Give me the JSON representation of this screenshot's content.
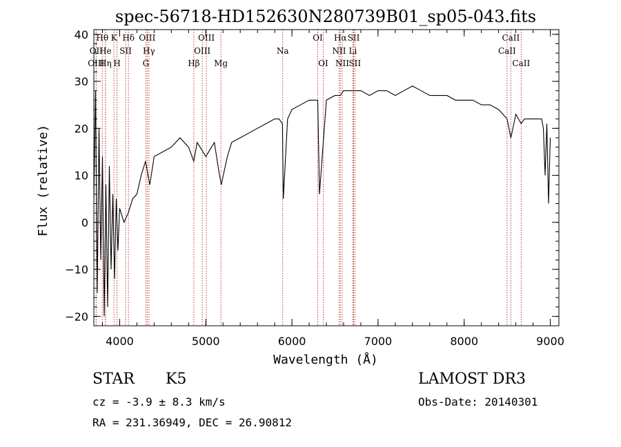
{
  "chart_data": {
    "type": "line",
    "title": "spec-56718-HD152630N280739B01_sp05-043.fits",
    "xlabel": "Wavelength (Å)",
    "ylabel": "Flux (relative)",
    "xlim": [
      3700,
      9100
    ],
    "ylim": [
      -22,
      41
    ],
    "x_ticks": [
      4000,
      5000,
      6000,
      7000,
      8000,
      9000
    ],
    "y_ticks": [
      -20,
      -10,
      0,
      10,
      20,
      30,
      40
    ],
    "grid": false,
    "series": [
      {
        "name": "spectrum",
        "wavelength": [
          3700,
          3720,
          3740,
          3760,
          3780,
          3800,
          3820,
          3840,
          3860,
          3880,
          3900,
          3920,
          3940,
          3960,
          3980,
          4000,
          4050,
          4100,
          4150,
          4200,
          4250,
          4300,
          4350,
          4400,
          4500,
          4600,
          4700,
          4800,
          4860,
          4900,
          5000,
          5100,
          5150,
          5180,
          5250,
          5300,
          5400,
          5500,
          5600,
          5700,
          5800,
          5850,
          5890,
          5900,
          5950,
          6000,
          6100,
          6200,
          6300,
          6320,
          6400,
          6500,
          6563,
          6600,
          6700,
          6800,
          6900,
          7000,
          7100,
          7200,
          7300,
          7400,
          7500,
          7600,
          7700,
          7800,
          7900,
          8000,
          8100,
          8200,
          8300,
          8400,
          8450,
          8498,
          8542,
          8600,
          8662,
          8700,
          8800,
          8850,
          8900,
          8920,
          8940,
          8960,
          8980,
          9000
        ],
        "flux": [
          5,
          28,
          -15,
          20,
          -8,
          14,
          -20,
          8,
          -18,
          12,
          -10,
          6,
          -12,
          5,
          -6,
          3,
          0,
          2,
          5,
          6,
          10,
          13,
          8,
          14,
          15,
          16,
          18,
          16,
          13,
          17,
          14,
          17,
          11,
          8,
          14,
          17,
          18,
          19,
          20,
          21,
          22,
          22,
          21,
          5,
          22,
          24,
          25,
          26,
          26,
          6,
          26,
          27,
          27,
          28,
          28,
          28,
          27,
          28,
          28,
          27,
          28,
          29,
          28,
          27,
          27,
          27,
          26,
          26,
          26,
          25,
          25,
          24,
          23,
          22,
          18,
          23,
          21,
          22,
          22,
          22,
          22,
          20,
          10,
          21,
          4,
          18
        ]
      }
    ],
    "spectral_lines": [
      {
        "label": "Hθ",
        "wl": 3798,
        "row": 1
      },
      {
        "label": "OII",
        "wl": 3727,
        "row": 2
      },
      {
        "label": "OIII",
        "wl": 3726,
        "row": 3
      },
      {
        "label": "He",
        "wl": 3835,
        "row": 2
      },
      {
        "label": "Hη",
        "wl": 3835,
        "row": 3
      },
      {
        "label": "K",
        "wl": 3934,
        "row": 1
      },
      {
        "label": "H",
        "wl": 3969,
        "row": 3
      },
      {
        "label": "SII",
        "wl": 4069,
        "row": 2
      },
      {
        "label": "Hδ",
        "wl": 4102,
        "row": 1
      },
      {
        "label": "OIII",
        "wl": 4320,
        "row": 1
      },
      {
        "label": "Hγ",
        "wl": 4340,
        "row": 2
      },
      {
        "label": "G",
        "wl": 4304,
        "row": 3
      },
      {
        "label": "Hβ",
        "wl": 4861,
        "row": 3
      },
      {
        "label": "OIII",
        "wl": 4959,
        "row": 2
      },
      {
        "label": "OIII",
        "wl": 5007,
        "row": 1
      },
      {
        "label": "Mg",
        "wl": 5175,
        "row": 3
      },
      {
        "label": "Na",
        "wl": 5893,
        "row": 2
      },
      {
        "label": "OI",
        "wl": 6300,
        "row": 1
      },
      {
        "label": "OI",
        "wl": 6364,
        "row": 3
      },
      {
        "label": "Hα",
        "wl": 6563,
        "row": 1
      },
      {
        "label": "NII",
        "wl": 6548,
        "row": 2
      },
      {
        "label": "NII",
        "wl": 6584,
        "row": 3
      },
      {
        "label": "SII",
        "wl": 6717,
        "row": 1
      },
      {
        "label": "Li",
        "wl": 6708,
        "row": 2
      },
      {
        "label": "SII",
        "wl": 6731,
        "row": 3
      },
      {
        "label": "CaII",
        "wl": 8542,
        "row": 1
      },
      {
        "label": "CaII",
        "wl": 8498,
        "row": 2
      },
      {
        "label": "CaII",
        "wl": 8662,
        "row": 3
      }
    ]
  },
  "info": {
    "object_class": "STAR",
    "subclass": "K5",
    "survey": "LAMOST DR3",
    "cz_text": "cz = -3.9 ± 8.3 km/s",
    "obs_date_text": "Obs-Date: 20140301",
    "radec_text": "RA = 231.36949, DEC =  26.90812"
  },
  "colors": {
    "spectrum": "#000000",
    "lines": "#b22222",
    "axes": "#000000"
  }
}
